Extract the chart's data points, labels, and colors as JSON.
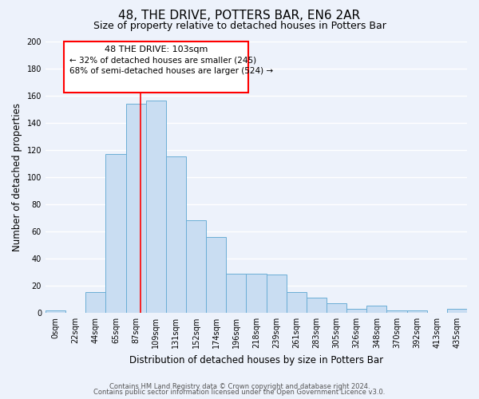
{
  "title": "48, THE DRIVE, POTTERS BAR, EN6 2AR",
  "subtitle": "Size of property relative to detached houses in Potters Bar",
  "xlabel": "Distribution of detached houses by size in Potters Bar",
  "ylabel": "Number of detached properties",
  "bin_labels": [
    "0sqm",
    "22sqm",
    "44sqm",
    "65sqm",
    "87sqm",
    "109sqm",
    "131sqm",
    "152sqm",
    "174sqm",
    "196sqm",
    "218sqm",
    "239sqm",
    "261sqm",
    "283sqm",
    "305sqm",
    "326sqm",
    "348sqm",
    "370sqm",
    "392sqm",
    "413sqm",
    "435sqm"
  ],
  "bar_heights": [
    2,
    0,
    15,
    117,
    154,
    156,
    115,
    68,
    56,
    29,
    29,
    28,
    15,
    11,
    7,
    3,
    5,
    2,
    2,
    0,
    3
  ],
  "bar_color": "#c9ddf2",
  "bar_edge_color": "#6baed6",
  "ylim": [
    0,
    200
  ],
  "yticks": [
    0,
    20,
    40,
    60,
    80,
    100,
    120,
    140,
    160,
    180,
    200
  ],
  "property_label": "48 THE DRIVE: 103sqm",
  "annotation_line1": "← 32% of detached houses are smaller (245)",
  "annotation_line2": "68% of semi-detached houses are larger (524) →",
  "footer_line1": "Contains HM Land Registry data © Crown copyright and database right 2024.",
  "footer_line2": "Contains public sector information licensed under the Open Government Licence v3.0.",
  "bg_color": "#edf2fb",
  "grid_color": "#ffffff",
  "title_fontsize": 11,
  "subtitle_fontsize": 9,
  "axis_label_fontsize": 8.5,
  "tick_fontsize": 7,
  "footer_fontsize": 6,
  "annotation_fontsize": 8,
  "vline_pos": 4.227
}
